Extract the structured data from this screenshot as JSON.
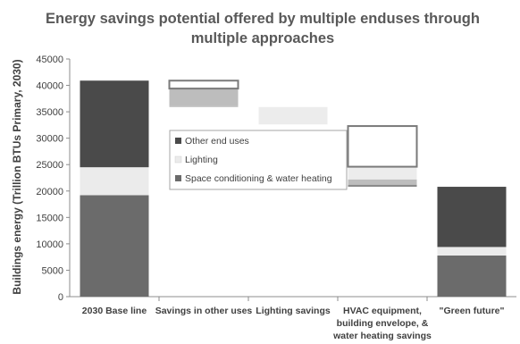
{
  "chart_data": {
    "type": "bar",
    "title": "Energy savings potential offered by multiple enduses through multiple approaches",
    "title_lines": [
      "Energy savings potential offered by multiple enduses through",
      "multiple approaches"
    ],
    "ylabel": "Buildings energy (Trillion BTUs Primary, 2030)",
    "xlabel": "",
    "ylim": [
      0,
      45000
    ],
    "yticks": [
      0,
      5000,
      10000,
      15000,
      20000,
      25000,
      30000,
      35000,
      40000,
      45000
    ],
    "ytick_labels": [
      "0",
      "5000",
      "10000",
      "15000",
      "20000",
      "25000",
      "30000",
      "35000",
      "40000",
      "45000"
    ],
    "grid": false,
    "legend_position": "center-left",
    "categories": [
      {
        "lines": [
          "2030 Base line"
        ]
      },
      {
        "lines": [
          "Savings in other uses"
        ]
      },
      {
        "lines": [
          "Lighting savings"
        ]
      },
      {
        "lines": [
          "HVAC equipment,",
          "building envelope, &",
          "water heating savings"
        ]
      },
      {
        "lines": [
          "\"Green future\""
        ]
      }
    ],
    "series": [
      {
        "name": "Space conditioning & water heating",
        "color": "#6b6b6b",
        "fill": "solid"
      },
      {
        "name": "Lighting",
        "color": "#ebebeb",
        "fill": "solid"
      },
      {
        "name": "Other end uses",
        "color": "#4a4a4a",
        "fill": "solid"
      }
    ],
    "segments": [
      {
        "category": 0,
        "series": "Space conditioning & water heating",
        "bottom": 0,
        "top": 19200,
        "style": "solid"
      },
      {
        "category": 0,
        "series": "Lighting",
        "bottom": 19200,
        "top": 24500,
        "style": "solid"
      },
      {
        "category": 0,
        "series": "Other end uses",
        "bottom": 24500,
        "top": 40900,
        "style": "solid"
      },
      {
        "category": 1,
        "series": "Space conditioning & water heating",
        "bottom": 35900,
        "top": 36100,
        "style": "faded"
      },
      {
        "category": 1,
        "series": "Lighting",
        "bottom": 36100,
        "top": 39400,
        "style": "faded"
      },
      {
        "category": 1,
        "series": "Other end uses",
        "bottom": 39400,
        "top": 40900,
        "style": "outline"
      },
      {
        "category": 2,
        "series": "Lighting",
        "bottom": 32600,
        "top": 35900,
        "style": "faded-light"
      },
      {
        "category": 3,
        "series": "Space conditioning & water heating",
        "bottom": 20800,
        "top": 21200,
        "style": "faded-dark"
      },
      {
        "category": 3,
        "series": "Space conditioning & water heating",
        "bottom": 21200,
        "top": 22200,
        "style": "faded"
      },
      {
        "category": 3,
        "series": "Lighting",
        "bottom": 22200,
        "top": 24600,
        "style": "faded-light"
      },
      {
        "category": 3,
        "series": "Other end uses",
        "bottom": 24600,
        "top": 32300,
        "style": "outline"
      },
      {
        "category": 4,
        "series": "Space conditioning & water heating",
        "bottom": 0,
        "top": 7800,
        "style": "solid"
      },
      {
        "category": 4,
        "series": "Lighting",
        "bottom": 7800,
        "top": 9400,
        "style": "solid"
      },
      {
        "category": 4,
        "series": "Other end uses",
        "bottom": 9400,
        "top": 20800,
        "style": "solid"
      }
    ],
    "legend": [
      "Other end uses",
      "Lighting",
      "Space conditioning & water heating"
    ]
  }
}
